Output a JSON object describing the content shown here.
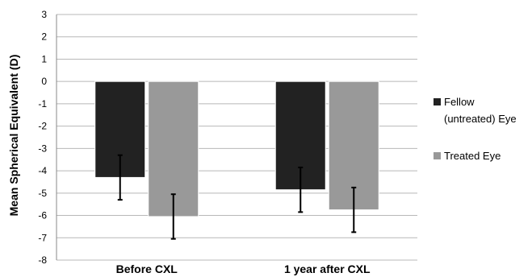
{
  "chart_data": {
    "type": "bar",
    "ylabel": "Mean Spherical Equivalent (D)",
    "ylim": [
      -8,
      3
    ],
    "yticks": [
      3,
      2,
      1,
      0,
      -1,
      -2,
      -3,
      -4,
      -5,
      -6,
      -7,
      -8
    ],
    "categories": [
      "Before CXL",
      "1 year after CXL"
    ],
    "series": [
      {
        "name_lines": [
          "Fellow",
          "(untreated) Eye"
        ],
        "name": "Fellow (untreated) Eye",
        "color": "#222222",
        "values": [
          -4.3,
          -4.85
        ],
        "error": [
          1.0,
          1.0
        ]
      },
      {
        "name_lines": [
          "Treated Eye"
        ],
        "name": "Treated Eye",
        "color": "#999999",
        "values": [
          -6.05,
          -5.75
        ],
        "error": [
          1.0,
          1.0
        ]
      }
    ],
    "grid": true,
    "legend_position": "right"
  }
}
